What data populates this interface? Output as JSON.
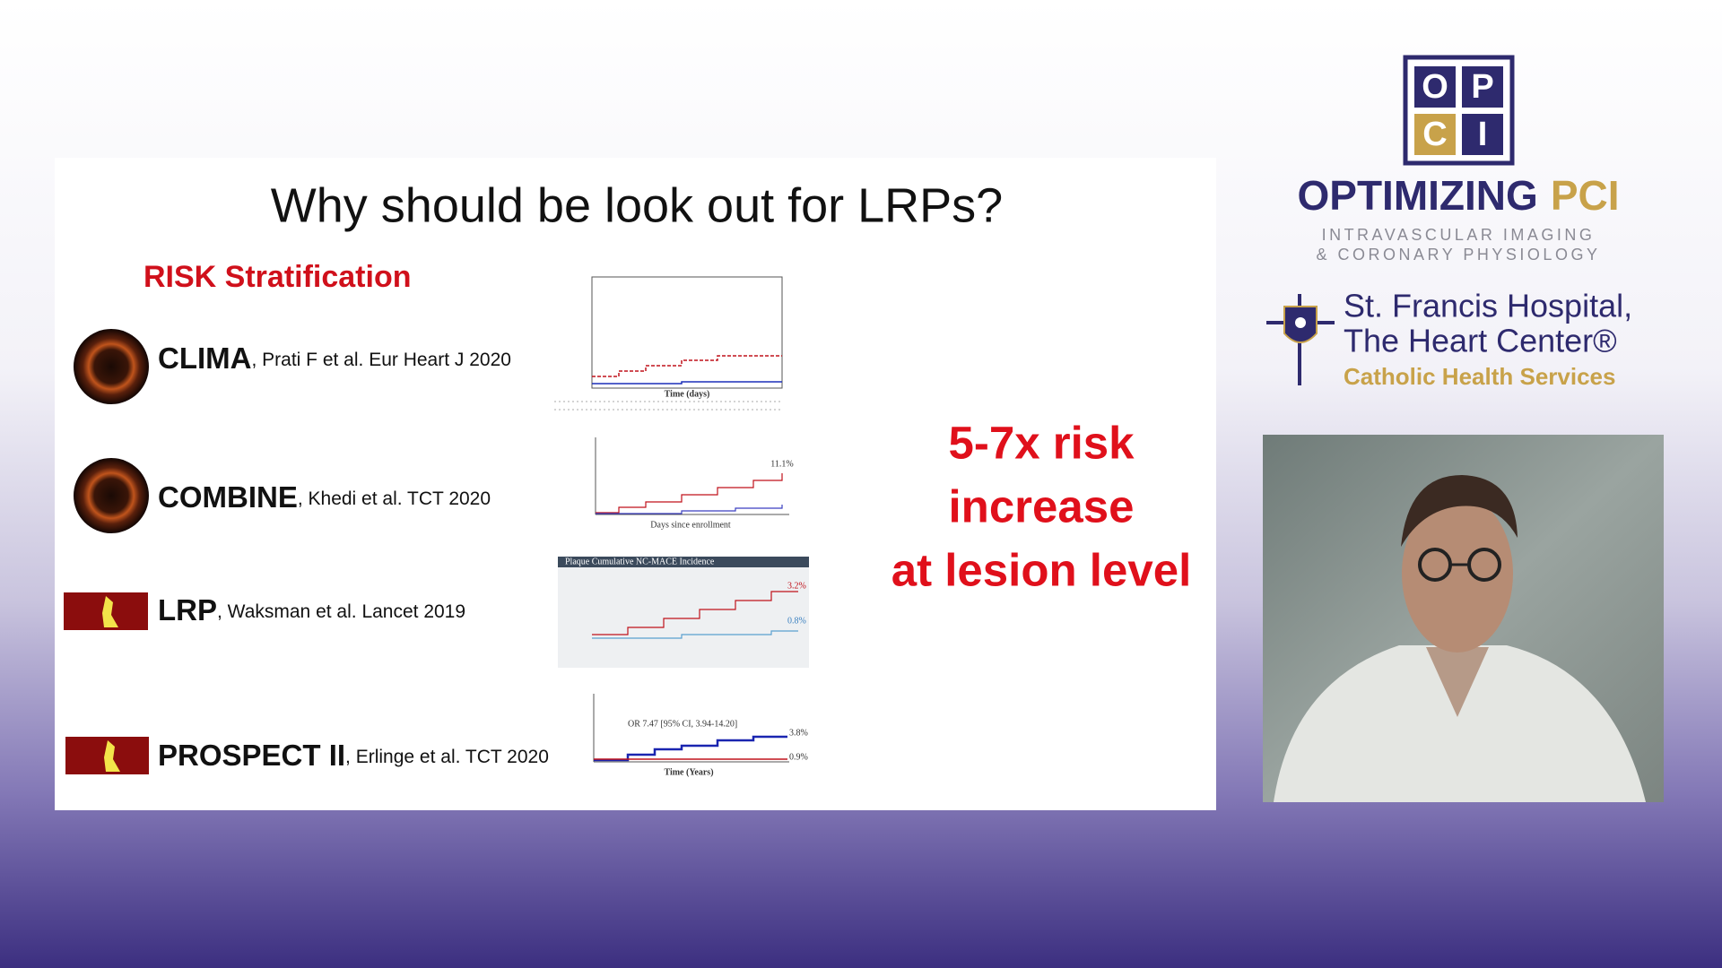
{
  "slide": {
    "title": "Why should be look out for LRPs?",
    "subtitle": "RISK Stratification",
    "studies": [
      {
        "name": "CLIMA",
        "citation": ", Prati F et al. Eur Heart J 2020"
      },
      {
        "name": "COMBINE",
        "citation": ", Khedi et al. TCT 2020"
      },
      {
        "name": "LRP",
        "citation": ", Waksman et al. Lancet 2019"
      },
      {
        "name": "PROSPECT II",
        "citation": ", Erlinge et al. TCT 2020"
      }
    ],
    "charts": [
      {
        "x_label": "Time (days)"
      },
      {
        "x_label": "Days since enrollment",
        "end_label": "11.1%"
      },
      {
        "title": "Plaque Cumulative NC-MACE Incidence",
        "end_labels": [
          "3.2%",
          "0.8%"
        ]
      },
      {
        "annotation": "OR 7.47 [95% CI, 3.94-14.20]",
        "x_label": "Time (Years)",
        "end_labels": [
          "3.8%",
          "0.9%"
        ]
      }
    ],
    "callout": [
      "5-7x risk",
      "increase",
      "at lesion level"
    ]
  },
  "sidebar": {
    "logo_letters": [
      "O",
      "P",
      "C",
      "I"
    ],
    "brand": {
      "main": "OPTIMIZING",
      "accent": "PCI"
    },
    "tagline": [
      "INTRAVASCULAR IMAGING",
      "& CORONARY PHYSIOLOGY"
    ],
    "hospital": {
      "lines": [
        "St. Francis Hospital,",
        "The Heart Center®"
      ],
      "network": "Catholic Health Services"
    }
  }
}
